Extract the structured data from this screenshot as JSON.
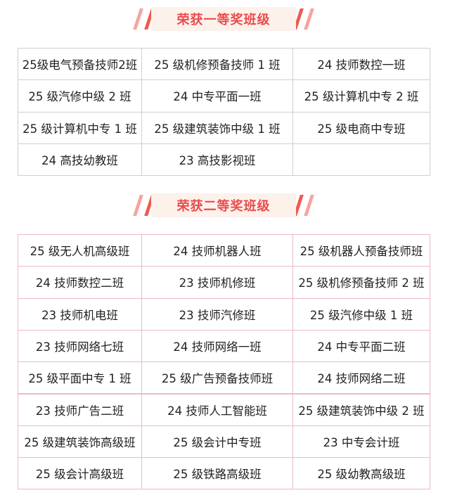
{
  "sections": [
    {
      "title": "荣获一等奖班级",
      "rows": [
        [
          "25级电气预备技师2班",
          "25 级机修预备技师 1 班",
          "24 技师数控一班"
        ],
        [
          "25 级汽修中级 2 班",
          "24 中专平面一班",
          "25 级计算机中专 2 班"
        ],
        [
          "25 级计算机中专 1 班",
          "25 级建筑装饰中级 1 班",
          "25 级电商中专班"
        ],
        [
          "24 高技幼教班",
          "23 高技影视班"
        ]
      ]
    },
    {
      "title": "荣获二等奖班级",
      "rows": [
        [
          "25 级无人机高级班",
          "24 技师机器人班",
          "25 级机器人预备技师班"
        ],
        [
          "24 技师数控二班",
          "23 技师机修班",
          "25 级机修预备技师 2 班"
        ],
        [
          "23 技师机电班",
          "23 技师汽修班",
          "25 级汽修中级 1 班"
        ],
        [
          "23 技师网络七班",
          "24 技师网络一班",
          "24 中专平面二班"
        ],
        [
          "25 级平面中专 1 班",
          "25 级广告预备技师班",
          "24 技师网络二班"
        ],
        [
          "23 技师广告二班",
          "24 技师人工智能班",
          "25 级建筑装饰中级 2 班"
        ],
        [
          "25 级建筑装饰高级班",
          "25 级会计中专班",
          "23 中专会计班"
        ],
        [
          "25 级会计高级班",
          "25 级铁路高级班",
          "25 级幼教高级班"
        ]
      ]
    }
  ]
}
